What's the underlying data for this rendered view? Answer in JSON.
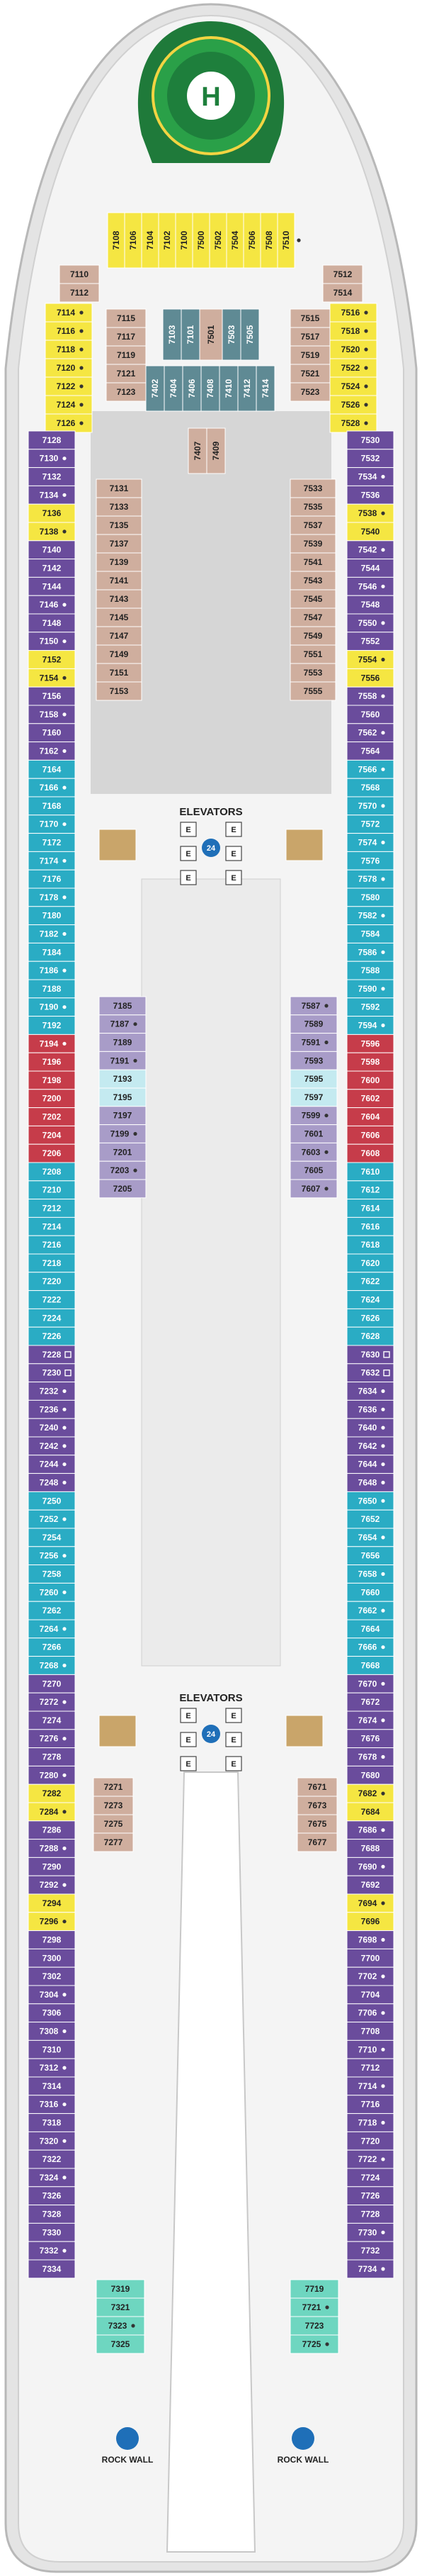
{
  "deck": {
    "elevators_fwd": "ELEVATORS",
    "elevators_aft": "ELEVATORS",
    "helipad": "H",
    "rock_wall": "ROCK WALL",
    "elevator_glyph": "E",
    "elevator_hours": "24"
  },
  "colors": {
    "purple": "#6a4c9c",
    "light_purple": "#a89cc8",
    "yellow": "#f5e642",
    "teal": "#2aacc4",
    "light_teal": "#8fd4d8",
    "tan": "#cfae9e",
    "steel": "#5f8a94",
    "red": "#c63c4a",
    "aqua": "#6ed6c0",
    "pale_blue": "#c4eaf0",
    "hull": "#e4e4e4"
  },
  "cabins": {
    "fwd_top": [
      "7108",
      "7106",
      "7104",
      "7102",
      "7100",
      "7500",
      "7502",
      "7504",
      "7506",
      "7508",
      "7510"
    ],
    "fwd_left_yellow": [
      "7114",
      "7116",
      "7118",
      "7120",
      "7122",
      "7124",
      "7126"
    ],
    "fwd_right_yellow": [
      "7516",
      "7518",
      "7520",
      "7522",
      "7524",
      "7526",
      "7528"
    ],
    "fwd_tan_left": [
      "7110",
      "7112"
    ],
    "fwd_tan_right": [
      "7512",
      "7514"
    ],
    "fwd_center_left": [
      "7115",
      "7117",
      "7119",
      "7121",
      "7123"
    ],
    "fwd_center_right": [
      "7515",
      "7517",
      "7519",
      "7521",
      "7523"
    ],
    "fwd_steel_top": [
      "7103",
      "7101",
      "7503",
      "7505"
    ],
    "fwd_tan_top": [
      "7501"
    ],
    "fwd_steel_bottom": [
      "7402",
      "7404",
      "7406",
      "7408",
      "7410",
      "7412",
      "7414"
    ],
    "fwd_inner_pair": [
      "7407",
      "7409"
    ],
    "left_outer": [
      {
        "n": "7128",
        "c": "purple"
      },
      {
        "n": "7130",
        "c": "purple",
        "a": 1
      },
      {
        "n": "7132",
        "c": "purple"
      },
      {
        "n": "7134",
        "c": "purple",
        "a": 1
      },
      {
        "n": "7136",
        "c": "yellow"
      },
      {
        "n": "7138",
        "c": "yellow",
        "a": 1
      },
      {
        "n": "7140",
        "c": "purple"
      },
      {
        "n": "7142",
        "c": "purple"
      },
      {
        "n": "7144",
        "c": "purple"
      },
      {
        "n": "7146",
        "c": "purple",
        "a": 1
      },
      {
        "n": "7148",
        "c": "purple"
      },
      {
        "n": "7150",
        "c": "purple",
        "a": 1
      },
      {
        "n": "7152",
        "c": "yellow"
      },
      {
        "n": "7154",
        "c": "yellow",
        "a": 1
      },
      {
        "n": "7156",
        "c": "purple"
      },
      {
        "n": "7158",
        "c": "purple",
        "a": 1
      },
      {
        "n": "7160",
        "c": "purple"
      },
      {
        "n": "7162",
        "c": "purple",
        "a": 1
      },
      {
        "n": "7164",
        "c": "teal"
      },
      {
        "n": "7166",
        "c": "teal",
        "a": 1
      },
      {
        "n": "7168",
        "c": "teal"
      },
      {
        "n": "7170",
        "c": "teal",
        "a": 1
      },
      {
        "n": "7172",
        "c": "teal"
      },
      {
        "n": "7174",
        "c": "teal",
        "a": 1
      },
      {
        "n": "7176",
        "c": "teal"
      },
      {
        "n": "7178",
        "c": "teal",
        "a": 1
      },
      {
        "n": "7180",
        "c": "teal"
      },
      {
        "n": "7182",
        "c": "teal",
        "a": 1
      },
      {
        "n": "7184",
        "c": "teal"
      },
      {
        "n": "7186",
        "c": "teal",
        "a": 1
      },
      {
        "n": "7188",
        "c": "teal"
      },
      {
        "n": "7190",
        "c": "teal",
        "a": 1
      },
      {
        "n": "7192",
        "c": "teal"
      },
      {
        "n": "7194",
        "c": "red",
        "a": 1
      },
      {
        "n": "7196",
        "c": "red"
      },
      {
        "n": "7198",
        "c": "red"
      },
      {
        "n": "7200",
        "c": "red"
      },
      {
        "n": "7202",
        "c": "red"
      },
      {
        "n": "7204",
        "c": "red"
      },
      {
        "n": "7206",
        "c": "red"
      },
      {
        "n": "7208",
        "c": "teal"
      },
      {
        "n": "7210",
        "c": "teal"
      },
      {
        "n": "7212",
        "c": "teal"
      },
      {
        "n": "7214",
        "c": "teal"
      },
      {
        "n": "7216",
        "c": "teal"
      },
      {
        "n": "7218",
        "c": "teal"
      },
      {
        "n": "7220",
        "c": "teal"
      },
      {
        "n": "7222",
        "c": "teal"
      },
      {
        "n": "7224",
        "c": "teal"
      },
      {
        "n": "7226",
        "c": "teal"
      },
      {
        "n": "7228",
        "c": "purple",
        "b": 1
      },
      {
        "n": "7230",
        "c": "purple",
        "b": 1
      },
      {
        "n": "7232",
        "c": "purple",
        "a": 1
      },
      {
        "n": "7236",
        "c": "purple",
        "a": 1
      },
      {
        "n": "7240",
        "c": "purple",
        "a": 1
      },
      {
        "n": "7242",
        "c": "purple",
        "a": 1
      },
      {
        "n": "7244",
        "c": "purple",
        "a": 1
      },
      {
        "n": "7248",
        "c": "purple",
        "a": 1
      },
      {
        "n": "7250",
        "c": "teal"
      },
      {
        "n": "7252",
        "c": "teal",
        "a": 1
      },
      {
        "n": "7254",
        "c": "teal"
      },
      {
        "n": "7256",
        "c": "teal",
        "a": 1
      },
      {
        "n": "7258",
        "c": "teal"
      },
      {
        "n": "7260",
        "c": "teal",
        "a": 1
      },
      {
        "n": "7262",
        "c": "teal"
      },
      {
        "n": "7264",
        "c": "teal",
        "a": 1
      },
      {
        "n": "7266",
        "c": "teal"
      },
      {
        "n": "7268",
        "c": "teal",
        "a": 1
      },
      {
        "n": "7270",
        "c": "purple"
      },
      {
        "n": "7272",
        "c": "purple",
        "a": 1
      },
      {
        "n": "7274",
        "c": "purple"
      },
      {
        "n": "7276",
        "c": "purple",
        "a": 1
      },
      {
        "n": "7278",
        "c": "purple"
      },
      {
        "n": "7280",
        "c": "purple",
        "a": 1
      },
      {
        "n": "7282",
        "c": "yellow"
      },
      {
        "n": "7284",
        "c": "yellow",
        "a": 1
      },
      {
        "n": "7286",
        "c": "purple"
      },
      {
        "n": "7288",
        "c": "purple",
        "a": 1
      },
      {
        "n": "7290",
        "c": "purple"
      },
      {
        "n": "7292",
        "c": "purple",
        "a": 1
      },
      {
        "n": "7294",
        "c": "yellow"
      },
      {
        "n": "7296",
        "c": "yellow",
        "a": 1
      },
      {
        "n": "7298",
        "c": "purple"
      },
      {
        "n": "7300",
        "c": "purple"
      },
      {
        "n": "7302",
        "c": "purple"
      },
      {
        "n": "7304",
        "c": "purple",
        "a": 1
      },
      {
        "n": "7306",
        "c": "purple"
      },
      {
        "n": "7308",
        "c": "purple",
        "a": 1
      },
      {
        "n": "7310",
        "c": "purple"
      },
      {
        "n": "7312",
        "c": "purple",
        "a": 1
      },
      {
        "n": "7314",
        "c": "purple"
      },
      {
        "n": "7316",
        "c": "purple",
        "a": 1
      },
      {
        "n": "7318",
        "c": "purple"
      },
      {
        "n": "7320",
        "c": "purple",
        "a": 1
      },
      {
        "n": "7322",
        "c": "purple"
      },
      {
        "n": "7324",
        "c": "purple",
        "a": 1
      },
      {
        "n": "7326",
        "c": "purple"
      },
      {
        "n": "7328",
        "c": "purple"
      },
      {
        "n": "7330",
        "c": "purple"
      },
      {
        "n": "7332",
        "c": "purple",
        "a": 1
      },
      {
        "n": "7334",
        "c": "purple"
      }
    ],
    "right_outer": [
      {
        "n": "7530",
        "c": "purple"
      },
      {
        "n": "7532",
        "c": "purple"
      },
      {
        "n": "7534",
        "c": "purple",
        "a": 1
      },
      {
        "n": "7536",
        "c": "purple"
      },
      {
        "n": "7538",
        "c": "yellow",
        "a": 1
      },
      {
        "n": "7540",
        "c": "yellow"
      },
      {
        "n": "7542",
        "c": "purple",
        "a": 1
      },
      {
        "n": "7544",
        "c": "purple"
      },
      {
        "n": "7546",
        "c": "purple",
        "a": 1
      },
      {
        "n": "7548",
        "c": "purple"
      },
      {
        "n": "7550",
        "c": "purple",
        "a": 1
      },
      {
        "n": "7552",
        "c": "purple"
      },
      {
        "n": "7554",
        "c": "yellow",
        "a": 1
      },
      {
        "n": "7556",
        "c": "yellow"
      },
      {
        "n": "7558",
        "c": "purple",
        "a": 1
      },
      {
        "n": "7560",
        "c": "purple"
      },
      {
        "n": "7562",
        "c": "purple",
        "a": 1
      },
      {
        "n": "7564",
        "c": "purple"
      },
      {
        "n": "7566",
        "c": "teal",
        "a": 1
      },
      {
        "n": "7568",
        "c": "teal"
      },
      {
        "n": "7570",
        "c": "teal",
        "a": 1
      },
      {
        "n": "7572",
        "c": "teal"
      },
      {
        "n": "7574",
        "c": "teal",
        "a": 1
      },
      {
        "n": "7576",
        "c": "teal"
      },
      {
        "n": "7578",
        "c": "teal",
        "a": 1
      },
      {
        "n": "7580",
        "c": "teal"
      },
      {
        "n": "7582",
        "c": "teal",
        "a": 1
      },
      {
        "n": "7584",
        "c": "teal"
      },
      {
        "n": "7586",
        "c": "teal",
        "a": 1
      },
      {
        "n": "7588",
        "c": "teal"
      },
      {
        "n": "7590",
        "c": "teal",
        "a": 1
      },
      {
        "n": "7592",
        "c": "teal"
      },
      {
        "n": "7594",
        "c": "teal",
        "a": 1
      },
      {
        "n": "7596",
        "c": "red"
      },
      {
        "n": "7598",
        "c": "red"
      },
      {
        "n": "7600",
        "c": "red"
      },
      {
        "n": "7602",
        "c": "red"
      },
      {
        "n": "7604",
        "c": "red"
      },
      {
        "n": "7606",
        "c": "red"
      },
      {
        "n": "7608",
        "c": "red"
      },
      {
        "n": "7610",
        "c": "teal"
      },
      {
        "n": "7612",
        "c": "teal"
      },
      {
        "n": "7614",
        "c": "teal"
      },
      {
        "n": "7616",
        "c": "teal"
      },
      {
        "n": "7618",
        "c": "teal"
      },
      {
        "n": "7620",
        "c": "teal"
      },
      {
        "n": "7622",
        "c": "teal"
      },
      {
        "n": "7624",
        "c": "teal"
      },
      {
        "n": "7626",
        "c": "teal"
      },
      {
        "n": "7628",
        "c": "teal"
      },
      {
        "n": "7630",
        "c": "purple",
        "b": 1
      },
      {
        "n": "7632",
        "c": "purple",
        "b": 1
      },
      {
        "n": "7634",
        "c": "purple",
        "a": 1
      },
      {
        "n": "7636",
        "c": "purple",
        "a": 1
      },
      {
        "n": "7640",
        "c": "purple",
        "a": 1
      },
      {
        "n": "7642",
        "c": "purple",
        "a": 1
      },
      {
        "n": "7644",
        "c": "purple",
        "a": 1
      },
      {
        "n": "7648",
        "c": "purple",
        "a": 1
      },
      {
        "n": "7650",
        "c": "teal",
        "a": 1
      },
      {
        "n": "7652",
        "c": "teal"
      },
      {
        "n": "7654",
        "c": "teal",
        "a": 1
      },
      {
        "n": "7656",
        "c": "teal"
      },
      {
        "n": "7658",
        "c": "teal",
        "a": 1
      },
      {
        "n": "7660",
        "c": "teal"
      },
      {
        "n": "7662",
        "c": "teal",
        "a": 1
      },
      {
        "n": "7664",
        "c": "teal"
      },
      {
        "n": "7666",
        "c": "teal",
        "a": 1
      },
      {
        "n": "7668",
        "c": "teal"
      },
      {
        "n": "7670",
        "c": "purple",
        "a": 1
      },
      {
        "n": "7672",
        "c": "purple"
      },
      {
        "n": "7674",
        "c": "purple",
        "a": 1
      },
      {
        "n": "7676",
        "c": "purple"
      },
      {
        "n": "7678",
        "c": "purple",
        "a": 1
      },
      {
        "n": "7680",
        "c": "purple"
      },
      {
        "n": "7682",
        "c": "yellow",
        "a": 1
      },
      {
        "n": "7684",
        "c": "yellow"
      },
      {
        "n": "7686",
        "c": "purple",
        "a": 1
      },
      {
        "n": "7688",
        "c": "purple"
      },
      {
        "n": "7690",
        "c": "purple",
        "a": 1
      },
      {
        "n": "7692",
        "c": "purple"
      },
      {
        "n": "7694",
        "c": "yellow",
        "a": 1
      },
      {
        "n": "7696",
        "c": "yellow"
      },
      {
        "n": "7698",
        "c": "purple",
        "a": 1
      },
      {
        "n": "7700",
        "c": "purple"
      },
      {
        "n": "7702",
        "c": "purple",
        "a": 1
      },
      {
        "n": "7704",
        "c": "purple"
      },
      {
        "n": "7706",
        "c": "purple",
        "a": 1
      },
      {
        "n": "7708",
        "c": "purple"
      },
      {
        "n": "7710",
        "c": "purple",
        "a": 1
      },
      {
        "n": "7712",
        "c": "purple"
      },
      {
        "n": "7714",
        "c": "purple",
        "a": 1
      },
      {
        "n": "7716",
        "c": "purple"
      },
      {
        "n": "7718",
        "c": "purple",
        "a": 1
      },
      {
        "n": "7720",
        "c": "purple"
      },
      {
        "n": "7722",
        "c": "purple",
        "a": 1
      },
      {
        "n": "7724",
        "c": "purple"
      },
      {
        "n": "7726",
        "c": "purple"
      },
      {
        "n": "7728",
        "c": "purple"
      },
      {
        "n": "7730",
        "c": "purple",
        "a": 1
      },
      {
        "n": "7732",
        "c": "purple"
      },
      {
        "n": "7734",
        "c": "purple",
        "a": 1
      }
    ],
    "inner_left_tan_fwd": [
      "7131",
      "7133",
      "7135",
      "7137",
      "7139",
      "7141",
      "7143",
      "7145",
      "7147",
      "7149",
      "7151",
      "7153"
    ],
    "inner_right_tan_fwd": [
      "7533",
      "7535",
      "7537",
      "7539",
      "7541",
      "7543",
      "7545",
      "7547",
      "7549",
      "7551",
      "7553",
      "7555"
    ],
    "inner_left_mid": [
      {
        "n": "7185",
        "c": "light_purple"
      },
      {
        "n": "7187",
        "c": "light_purple",
        "a": 1
      },
      {
        "n": "7189",
        "c": "light_purple"
      },
      {
        "n": "7191",
        "c": "light_purple",
        "a": 1
      },
      {
        "n": "7193",
        "c": "pale_blue"
      },
      {
        "n": "7195",
        "c": "pale_blue"
      },
      {
        "n": "7197",
        "c": "light_purple"
      },
      {
        "n": "7199",
        "c": "light_purple",
        "a": 1
      },
      {
        "n": "7201",
        "c": "light_purple"
      },
      {
        "n": "7203",
        "c": "light_purple",
        "a": 1
      },
      {
        "n": "7205",
        "c": "light_purple"
      }
    ],
    "inner_right_mid": [
      {
        "n": "7587",
        "c": "light_purple",
        "a": 1
      },
      {
        "n": "7589",
        "c": "light_purple"
      },
      {
        "n": "7591",
        "c": "light_purple",
        "a": 1
      },
      {
        "n": "7593",
        "c": "light_purple"
      },
      {
        "n": "7595",
        "c": "pale_blue"
      },
      {
        "n": "7597",
        "c": "pale_blue"
      },
      {
        "n": "7599",
        "c": "light_purple",
        "a": 1
      },
      {
        "n": "7601",
        "c": "light_purple"
      },
      {
        "n": "7603",
        "c": "light_purple",
        "a": 1
      },
      {
        "n": "7605",
        "c": "light_purple"
      },
      {
        "n": "7607",
        "c": "light_purple",
        "a": 1
      }
    ],
    "inner_left_aft_tan": [
      "7271",
      "7273",
      "7275",
      "7277"
    ],
    "inner_right_aft_tan": [
      "7671",
      "7673",
      "7675",
      "7677"
    ],
    "inner_left_aft_aqua": [
      {
        "n": "7319"
      },
      {
        "n": "7321"
      },
      {
        "n": "7323",
        "a": 1
      },
      {
        "n": "7325"
      }
    ],
    "inner_right_aft_aqua": [
      {
        "n": "7719"
      },
      {
        "n": "7721",
        "a": 1
      },
      {
        "n": "7723"
      },
      {
        "n": "7725",
        "a": 1
      }
    ]
  }
}
